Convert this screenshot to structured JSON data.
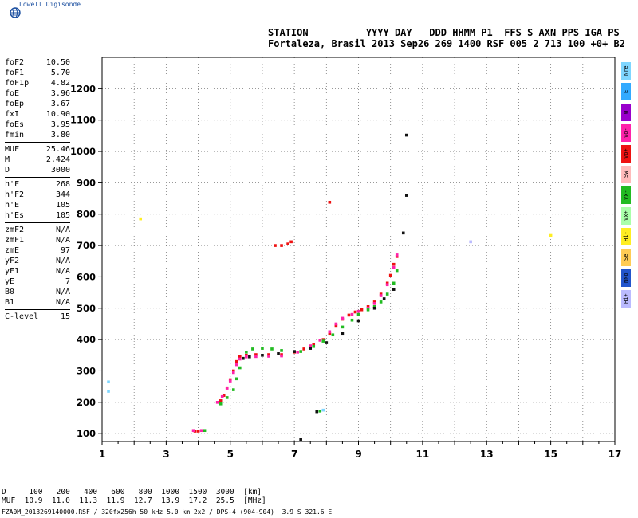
{
  "logo": {
    "name": "globe-logo-icon",
    "text": "Lowell Digisonde"
  },
  "header": {
    "line1": "STATION          YYYY DAY   DDD HHMM P1  FFS S AXN PPS IGA PS",
    "line2": "Fortaleza, Brasil 2013 Sep26 269 1400 RSF 005 2 713 100 +0+ B2"
  },
  "params": [
    {
      "name": "foF2",
      "value": "10.50"
    },
    {
      "name": "foF1",
      "value": "5.70"
    },
    {
      "name": "foF1p",
      "value": "4.82"
    },
    {
      "name": "foE",
      "value": "3.96"
    },
    {
      "name": "foEp",
      "value": "3.67"
    },
    {
      "name": "fxI",
      "value": "10.90"
    },
    {
      "name": "foEs",
      "value": "3.95"
    },
    {
      "name": "fmin",
      "value": "3.80"
    },
    {
      "sep": true
    },
    {
      "name": "MUF",
      "value": "25.46"
    },
    {
      "name": "M",
      "value": "2.424"
    },
    {
      "name": "D",
      "value": "3000"
    },
    {
      "sep": true
    },
    {
      "name": "h'F",
      "value": "268"
    },
    {
      "name": "h'F2",
      "value": "344"
    },
    {
      "name": "h'E",
      "value": "105"
    },
    {
      "name": "h'Es",
      "value": "105"
    },
    {
      "sep": true
    },
    {
      "name": "zmF2",
      "value": "N/A"
    },
    {
      "name": "zmF1",
      "value": "N/A"
    },
    {
      "name": "zmE",
      "value": "97"
    },
    {
      "name": "yF2",
      "value": "N/A"
    },
    {
      "name": "yF1",
      "value": "N/A"
    },
    {
      "name": "yE",
      "value": "7"
    },
    {
      "name": "B0",
      "value": "N/A"
    },
    {
      "name": "B1",
      "value": "N/A"
    },
    {
      "sep": true
    },
    {
      "name": "C-level",
      "value": "15"
    }
  ],
  "legend": [
    {
      "label": "Nre",
      "color": "#7fd6ff"
    },
    {
      "label": "E",
      "color": "#33aaff"
    },
    {
      "label": "W",
      "color": "#9900cc"
    },
    {
      "label": "Vo-",
      "color": "#ff22aa"
    },
    {
      "label": "Vo+",
      "color": "#ee1111"
    },
    {
      "label": "Sw",
      "color": "#ffbbbb"
    },
    {
      "label": "Vx-",
      "color": "#22bb22"
    },
    {
      "label": "Vx+",
      "color": "#aaffaa"
    },
    {
      "label": "Hi-",
      "color": "#ffee22"
    },
    {
      "label": "Se",
      "color": "#ffcc55"
    },
    {
      "label": "NNo",
      "color": "#2255cc"
    },
    {
      "label": "Hi+",
      "color": "#bbbbff"
    }
  ],
  "chart_data": {
    "type": "scatter",
    "title": "",
    "xlabel": "",
    "ylabel": "",
    "xlim": [
      1,
      17
    ],
    "ylim": [
      75,
      1300
    ],
    "x_ticks": [
      1,
      3,
      5,
      7,
      9,
      11,
      13,
      15,
      17
    ],
    "y_ticks": [
      100,
      200,
      300,
      400,
      500,
      600,
      700,
      800,
      900,
      1000,
      1100,
      1200
    ],
    "grid": true,
    "series": [
      {
        "color": "#ee1111",
        "points": [
          [
            4.7,
            205
          ],
          [
            4.8,
            222
          ],
          [
            4.9,
            246
          ],
          [
            5.0,
            272
          ],
          [
            5.1,
            300
          ],
          [
            5.2,
            330
          ],
          [
            5.3,
            345
          ],
          [
            5.5,
            350
          ],
          [
            5.8,
            352
          ],
          [
            6.2,
            352
          ],
          [
            6.6,
            352
          ],
          [
            7.0,
            360
          ],
          [
            7.3,
            370
          ],
          [
            7.6,
            385
          ],
          [
            7.9,
            400
          ],
          [
            8.1,
            420
          ],
          [
            8.3,
            445
          ],
          [
            8.5,
            465
          ],
          [
            8.7,
            478
          ],
          [
            8.9,
            488
          ],
          [
            9.1,
            495
          ],
          [
            9.3,
            505
          ],
          [
            9.5,
            520
          ],
          [
            9.7,
            545
          ],
          [
            9.9,
            580
          ],
          [
            10.0,
            605
          ],
          [
            10.1,
            640
          ],
          [
            10.2,
            665
          ],
          [
            6.4,
            700
          ],
          [
            6.6,
            700
          ],
          [
            6.8,
            705
          ],
          [
            6.9,
            712
          ],
          [
            8.1,
            838
          ],
          [
            3.9,
            108
          ],
          [
            4.0,
            108
          ]
        ]
      },
      {
        "color": "#ff22aa",
        "points": [
          [
            4.6,
            200
          ],
          [
            4.75,
            218
          ],
          [
            4.9,
            245
          ],
          [
            5.0,
            268
          ],
          [
            5.1,
            295
          ],
          [
            5.2,
            320
          ],
          [
            5.3,
            338
          ],
          [
            5.5,
            345
          ],
          [
            5.8,
            346
          ],
          [
            6.2,
            347
          ],
          [
            6.6,
            348
          ],
          [
            7.1,
            360
          ],
          [
            7.5,
            380
          ],
          [
            7.8,
            398
          ],
          [
            8.1,
            425
          ],
          [
            8.3,
            450
          ],
          [
            8.5,
            468
          ],
          [
            8.8,
            480
          ],
          [
            9.0,
            490
          ],
          [
            9.3,
            500
          ],
          [
            9.5,
            515
          ],
          [
            9.7,
            540
          ],
          [
            9.9,
            575
          ],
          [
            10.1,
            630
          ],
          [
            10.2,
            670
          ],
          [
            3.85,
            110
          ],
          [
            4.1,
            110
          ]
        ]
      },
      {
        "color": "#22bb22",
        "points": [
          [
            4.7,
            195
          ],
          [
            4.9,
            215
          ],
          [
            5.1,
            240
          ],
          [
            5.2,
            275
          ],
          [
            5.3,
            310
          ],
          [
            5.4,
            340
          ],
          [
            5.5,
            360
          ],
          [
            5.7,
            370
          ],
          [
            6.0,
            372
          ],
          [
            6.3,
            370
          ],
          [
            6.6,
            365
          ],
          [
            7.2,
            362
          ],
          [
            7.6,
            378
          ],
          [
            7.9,
            395
          ],
          [
            8.2,
            415
          ],
          [
            8.5,
            440
          ],
          [
            8.8,
            462
          ],
          [
            9.0,
            480
          ],
          [
            9.3,
            495
          ],
          [
            9.5,
            505
          ],
          [
            9.7,
            520
          ],
          [
            9.9,
            545
          ],
          [
            10.1,
            580
          ],
          [
            10.2,
            620
          ],
          [
            4.2,
            110
          ],
          [
            7.8,
            172
          ]
        ]
      },
      {
        "color": "#111111",
        "points": [
          [
            5.4,
            340
          ],
          [
            5.6,
            345
          ],
          [
            6.0,
            350
          ],
          [
            6.5,
            355
          ],
          [
            7.0,
            362
          ],
          [
            7.5,
            372
          ],
          [
            8.0,
            390
          ],
          [
            8.5,
            420
          ],
          [
            9.0,
            460
          ],
          [
            9.5,
            500
          ],
          [
            9.8,
            530
          ],
          [
            10.1,
            560
          ],
          [
            10.4,
            740
          ],
          [
            10.5,
            860
          ],
          [
            10.5,
            1052
          ],
          [
            7.2,
            82
          ],
          [
            7.7,
            170
          ]
        ]
      },
      {
        "color": "#7fd6ff",
        "points": [
          [
            1.2,
            235
          ],
          [
            1.2,
            265
          ],
          [
            7.9,
            175
          ]
        ]
      },
      {
        "color": "#bbbbff",
        "points": [
          [
            12.5,
            712
          ]
        ]
      },
      {
        "color": "#ffee22",
        "points": [
          [
            2.2,
            785
          ],
          [
            15.0,
            732
          ]
        ]
      }
    ]
  },
  "bottom": {
    "d_row": "D     100   200   400   600   800  1000  1500  3000  [km]",
    "muf_row": "MUF  10.9  11.0  11.3  11.9  12.7  13.9  17.2  25.5  [MHz]",
    "footer": "FZA0M_2013269140000.RSF / 320fx256h 50 kHz 5.0 km 2x2 / DPS-4 (904-904)  3.9 S 321.6 E"
  }
}
